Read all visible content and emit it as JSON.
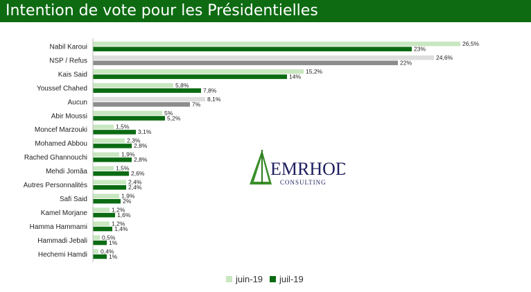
{
  "header": {
    "title": "Intention de vote pour les Présidentielles"
  },
  "colors": {
    "header_bg": "#0e6b12",
    "juin_default": "#c9e7c0",
    "juil_default": "#0b6b12",
    "juin_neutral": "#dddddd",
    "juil_neutral": "#8c8c8c"
  },
  "logo": {
    "name": "EMRHOD",
    "tagline": "CONSULTING"
  },
  "chart_data": {
    "type": "bar",
    "orientation": "horizontal",
    "categories": [
      "Nabil Karoui",
      "NSP / Refus",
      "Kais Said",
      "Youssef Chahed",
      "Aucun",
      "Abir Moussi",
      "Moncef Marzouki",
      "Mohamed Abbou",
      "Rached Ghannouchi",
      "Mehdi Jomâa",
      "Autres Personnalités",
      "Safi Said",
      "Kamel Morjane",
      "Hamma Hammami",
      "Hammadi Jebali",
      "Hechemi Hamdi"
    ],
    "neutral_categories": [
      "NSP / Refus",
      "Aucun"
    ],
    "series": [
      {
        "name": "juin-19",
        "values": [
          26.5,
          24.6,
          15.2,
          5.8,
          8.1,
          5,
          1.5,
          2.3,
          1.9,
          1.5,
          2.4,
          1.9,
          1.2,
          1.2,
          0.5,
          0.4
        ],
        "labels": [
          "26,5%",
          "24,6%",
          "15,2%",
          "5,8%",
          "8,1%",
          "5%",
          "1,5%",
          "2,3%",
          "1,9%",
          "1,5%",
          "2,4%",
          "1,9%",
          "1,2%",
          "1,2%",
          "0,5%",
          "0,4%"
        ]
      },
      {
        "name": "juil-19",
        "values": [
          23,
          22,
          14,
          7.8,
          7,
          5.2,
          3.1,
          2.8,
          2.8,
          2.6,
          2.4,
          2,
          1.6,
          1.4,
          1,
          1
        ],
        "labels": [
          "23%",
          "22%",
          "14%",
          "7,8%",
          "7%",
          "5,2%",
          "3,1%",
          "2,8%",
          "2,8%",
          "2,6%",
          "2,4%",
          "2%",
          "1,6%",
          "1,4%",
          "1%",
          "1%"
        ]
      }
    ],
    "xlim": [
      0,
      30
    ],
    "grid": false,
    "legend_position": "bottom"
  }
}
